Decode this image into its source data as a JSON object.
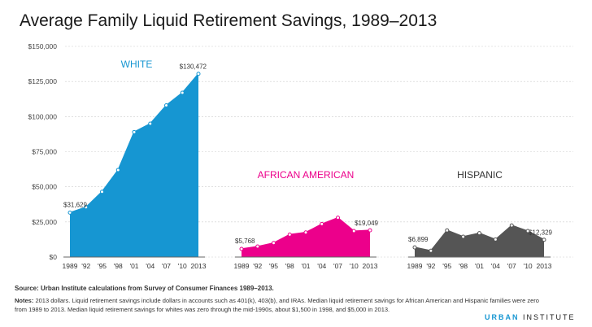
{
  "title": "Average Family Liquid Retirement Savings, 1989–2013",
  "source": "Source: Urban Institute calculations from Survey of Consumer Finances 1989–2013.",
  "notes_label": "Notes:",
  "notes_text": "2013 dollars. Liquid retirement savings include dollars in accounts such as 401(k), 403(b), and IRAs. Median liquid retirement savings for African American and Hispanic families were zero from 1989 to 2013. Median liquid retirement savings for whites was zero through the mid-1990s, about $1,500 in 1998, and $5,000 in 2013.",
  "brand": {
    "part1": "URBAN",
    "part2": " INSTITUTE"
  },
  "colors": {
    "white": "#1696d2",
    "african_american": "#ec008b",
    "hispanic": "#555555",
    "grid": "#cccccc",
    "axis": "#666666"
  },
  "chart_data": {
    "type": "area",
    "x": [
      "1989",
      "'92",
      "'95",
      "'98",
      "'01",
      "'04",
      "'07",
      "'10",
      "2013"
    ],
    "ylim": [
      0,
      150000
    ],
    "yticks": [
      0,
      25000,
      50000,
      75000,
      100000,
      125000,
      150000
    ],
    "ytick_labels": [
      "$0",
      "$25,000",
      "$50,000",
      "$75,000",
      "$100,000",
      "$125,000",
      "$150,000"
    ],
    "grid": true,
    "series": [
      {
        "name": "WHITE",
        "values": [
          31629,
          35500,
          46500,
          62000,
          89000,
          95000,
          108000,
          117000,
          130472
        ],
        "start_label": "$31,629",
        "end_label": "$130,472"
      },
      {
        "name": "AFRICAN AMERICAN",
        "values": [
          5768,
          7500,
          10000,
          16000,
          17500,
          23500,
          28000,
          18500,
          19049
        ],
        "start_label": "$5,768",
        "end_label": "$19,049"
      },
      {
        "name": "HISPANIC",
        "values": [
          6899,
          4500,
          19000,
          14500,
          17000,
          12500,
          22500,
          18500,
          12329
        ],
        "start_label": "$6,899",
        "end_label": "$12,329"
      }
    ]
  }
}
